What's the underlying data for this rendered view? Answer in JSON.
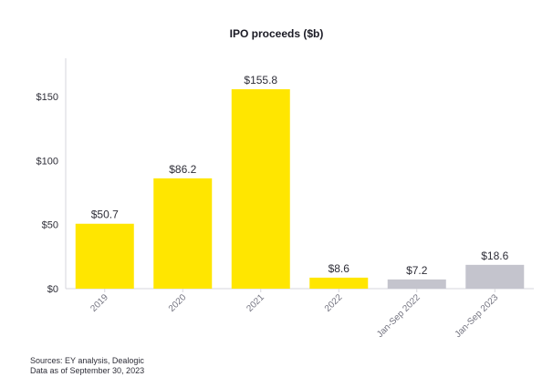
{
  "chart_data": {
    "type": "bar",
    "title": "IPO proceeds ($b)",
    "categories": [
      "2019",
      "2020",
      "2021",
      "2022",
      "Jan-Sep 2022",
      "Jan-Sep 2023"
    ],
    "values": [
      50.7,
      86.2,
      155.8,
      8.6,
      7.2,
      18.6
    ],
    "value_labels": [
      "$50.7",
      "$86.2",
      "$155.8",
      "$8.6",
      "$7.2",
      "$18.6"
    ],
    "bar_colors": [
      "#ffe600",
      "#ffe600",
      "#ffe600",
      "#ffe600",
      "#c4c4cd",
      "#c4c4cd"
    ],
    "y_ticks": [
      0,
      50,
      100,
      150
    ],
    "y_tick_labels": [
      "$0",
      "$50",
      "$100",
      "$150"
    ],
    "ylim": [
      0,
      180
    ],
    "grid": false,
    "legend": "none"
  },
  "footnotes": {
    "sources": "Sources: EY analysis, Dealogic",
    "data_as_of": "Data as of September 30, 2023"
  }
}
